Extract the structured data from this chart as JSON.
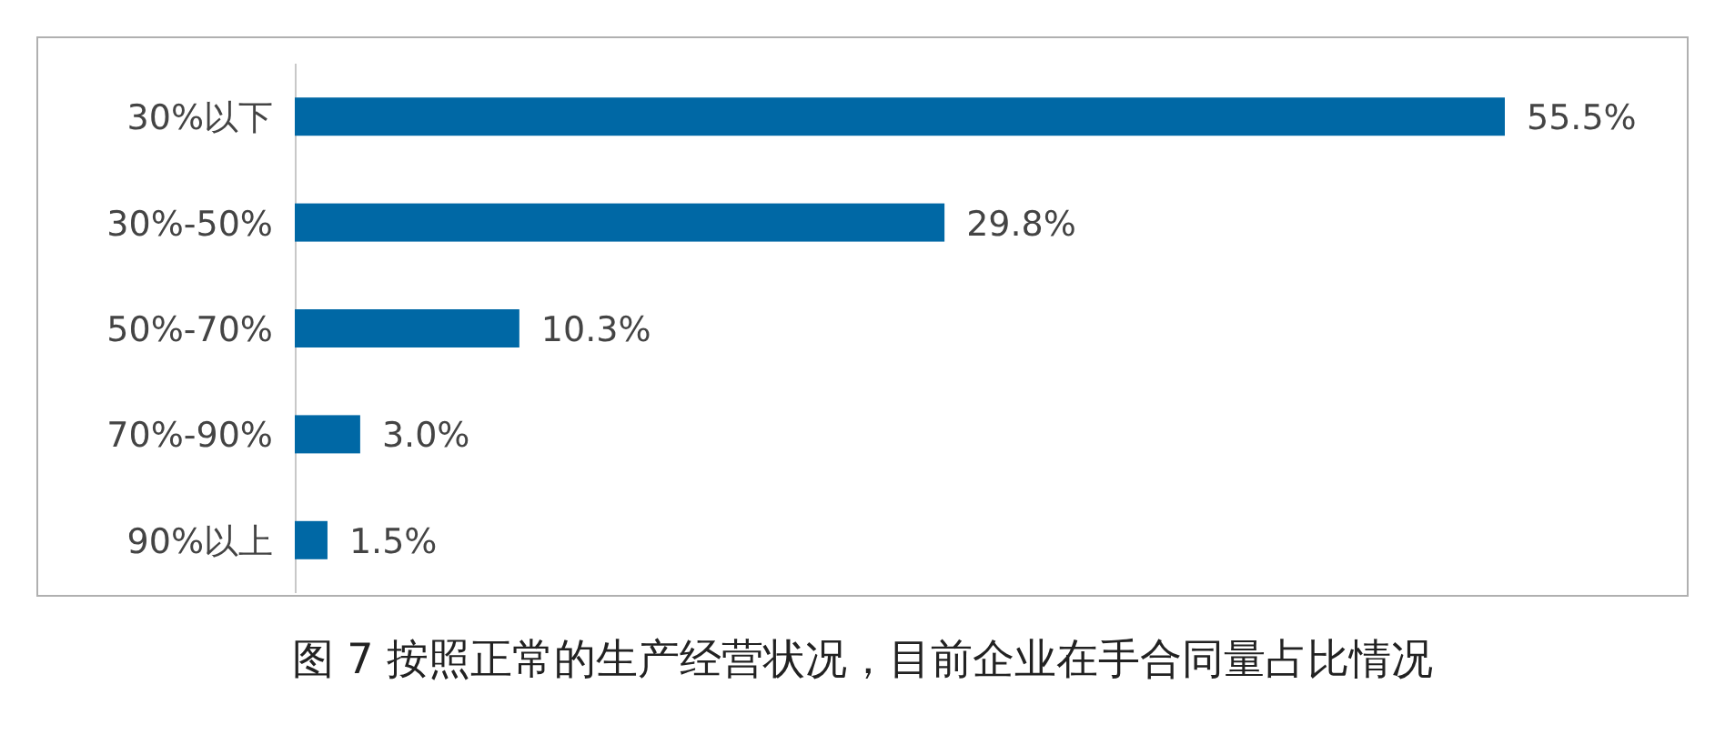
{
  "chart_data": {
    "type": "bar",
    "orientation": "horizontal",
    "title": "图 7  按照正常的生产经营状况，目前企业在手合同量占比情况",
    "categories": [
      "30%以下",
      "30%-50%",
      "50%-70%",
      "70%-90%",
      "90%以上"
    ],
    "values": [
      55.5,
      29.8,
      10.3,
      3.0,
      1.5
    ],
    "value_labels": [
      "55.5%",
      "29.8%",
      "10.3%",
      "3.0%",
      "1.5%"
    ],
    "color": "#0068a5"
  }
}
